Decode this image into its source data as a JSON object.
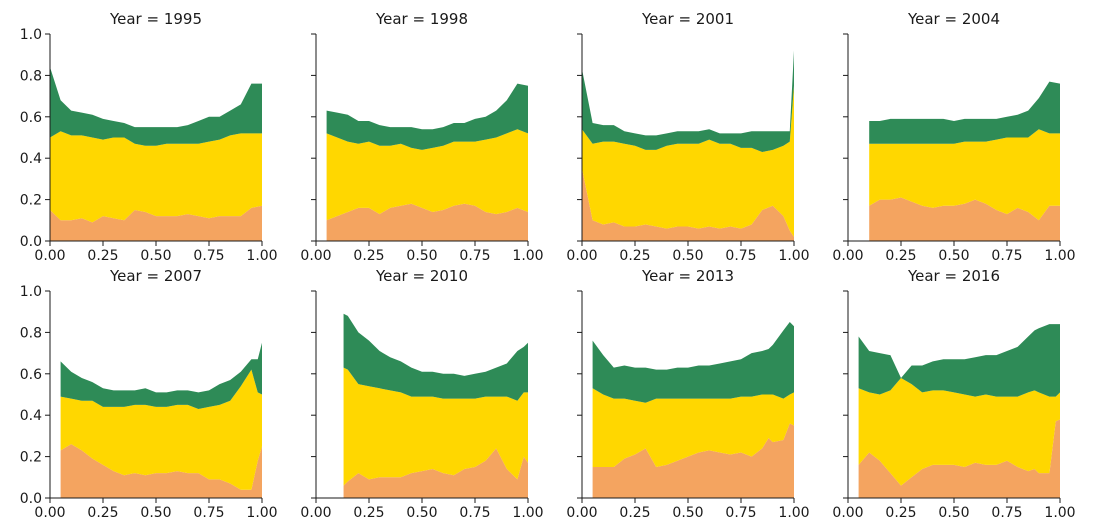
{
  "colors": {
    "orange": "#F4A460",
    "gold": "#FFD700",
    "green": "#2E8B57"
  },
  "chart_data": [
    {
      "type": "area",
      "title": "Year = 1995",
      "xlim": [
        0,
        1
      ],
      "ylim": [
        0,
        1
      ],
      "xticks": [
        "0.00",
        "0.25",
        "0.50",
        "0.75",
        "1.00"
      ],
      "yticks": [
        "0.0",
        "0.2",
        "0.4",
        "0.6",
        "0.8",
        "1.0"
      ],
      "grid": false,
      "x": [
        0.0,
        0.05,
        0.1,
        0.15,
        0.2,
        0.25,
        0.3,
        0.35,
        0.4,
        0.45,
        0.5,
        0.55,
        0.6,
        0.65,
        0.7,
        0.75,
        0.8,
        0.85,
        0.9,
        0.95,
        1.0
      ],
      "series": [
        {
          "color": "orange",
          "values": [
            0.15,
            0.1,
            0.1,
            0.11,
            0.09,
            0.12,
            0.11,
            0.1,
            0.15,
            0.14,
            0.12,
            0.12,
            0.12,
            0.13,
            0.12,
            0.11,
            0.12,
            0.12,
            0.12,
            0.16,
            0.17
          ]
        },
        {
          "color": "gold",
          "values": [
            0.35,
            0.43,
            0.41,
            0.4,
            0.41,
            0.37,
            0.39,
            0.4,
            0.32,
            0.32,
            0.34,
            0.35,
            0.35,
            0.34,
            0.35,
            0.37,
            0.37,
            0.39,
            0.4,
            0.36,
            0.35
          ]
        },
        {
          "color": "green",
          "values": [
            0.34,
            0.15,
            0.12,
            0.11,
            0.11,
            0.1,
            0.08,
            0.07,
            0.08,
            0.09,
            0.09,
            0.08,
            0.08,
            0.09,
            0.11,
            0.12,
            0.11,
            0.12,
            0.14,
            0.24,
            0.24
          ]
        }
      ]
    },
    {
      "type": "area",
      "title": "Year = 1998",
      "xlim": [
        0,
        1
      ],
      "ylim": [
        0,
        1
      ],
      "xticks": [
        "0.00",
        "0.25",
        "0.50",
        "0.75",
        "1.00"
      ],
      "yticks": [],
      "grid": false,
      "x": [
        0.05,
        0.1,
        0.15,
        0.2,
        0.25,
        0.3,
        0.35,
        0.4,
        0.45,
        0.5,
        0.55,
        0.6,
        0.65,
        0.7,
        0.75,
        0.8,
        0.85,
        0.9,
        0.95,
        1.0
      ],
      "series": [
        {
          "color": "orange",
          "values": [
            0.1,
            0.12,
            0.14,
            0.16,
            0.16,
            0.13,
            0.16,
            0.17,
            0.18,
            0.16,
            0.14,
            0.15,
            0.17,
            0.18,
            0.17,
            0.14,
            0.13,
            0.14,
            0.16,
            0.14
          ]
        },
        {
          "color": "gold",
          "values": [
            0.42,
            0.38,
            0.34,
            0.31,
            0.32,
            0.33,
            0.3,
            0.3,
            0.27,
            0.28,
            0.31,
            0.31,
            0.31,
            0.3,
            0.31,
            0.35,
            0.37,
            0.38,
            0.38,
            0.38
          ]
        },
        {
          "color": "green",
          "values": [
            0.11,
            0.12,
            0.13,
            0.11,
            0.1,
            0.1,
            0.09,
            0.08,
            0.1,
            0.1,
            0.09,
            0.09,
            0.09,
            0.09,
            0.11,
            0.11,
            0.13,
            0.16,
            0.22,
            0.23
          ]
        }
      ]
    },
    {
      "type": "area",
      "title": "Year = 2001",
      "xlim": [
        0,
        1
      ],
      "ylim": [
        0,
        1
      ],
      "xticks": [
        "0.00",
        "0.25",
        "0.50",
        "0.75",
        "1.00"
      ],
      "yticks": [],
      "grid": false,
      "x": [
        0.0,
        0.05,
        0.1,
        0.15,
        0.2,
        0.25,
        0.3,
        0.35,
        0.4,
        0.45,
        0.5,
        0.55,
        0.6,
        0.65,
        0.7,
        0.75,
        0.8,
        0.85,
        0.9,
        0.95,
        0.98,
        1.0
      ],
      "series": [
        {
          "color": "orange",
          "values": [
            0.35,
            0.1,
            0.08,
            0.09,
            0.07,
            0.07,
            0.08,
            0.07,
            0.06,
            0.07,
            0.07,
            0.06,
            0.07,
            0.06,
            0.07,
            0.06,
            0.08,
            0.15,
            0.17,
            0.12,
            0.05,
            0.02
          ]
        },
        {
          "color": "gold",
          "values": [
            0.19,
            0.37,
            0.4,
            0.39,
            0.4,
            0.39,
            0.36,
            0.37,
            0.4,
            0.4,
            0.4,
            0.41,
            0.42,
            0.41,
            0.4,
            0.39,
            0.37,
            0.28,
            0.27,
            0.34,
            0.43,
            0.73
          ]
        },
        {
          "color": "green",
          "values": [
            0.29,
            0.1,
            0.08,
            0.08,
            0.06,
            0.06,
            0.07,
            0.07,
            0.06,
            0.06,
            0.06,
            0.06,
            0.05,
            0.05,
            0.05,
            0.07,
            0.08,
            0.1,
            0.09,
            0.07,
            0.05,
            0.17
          ]
        }
      ]
    },
    {
      "type": "area",
      "title": "Year = 2004",
      "xlim": [
        0,
        1
      ],
      "ylim": [
        0,
        1
      ],
      "xticks": [
        "0.00",
        "0.25",
        "0.50",
        "0.75",
        "1.00"
      ],
      "yticks": [],
      "grid": false,
      "x": [
        0.1,
        0.15,
        0.2,
        0.25,
        0.3,
        0.35,
        0.4,
        0.45,
        0.5,
        0.55,
        0.6,
        0.65,
        0.7,
        0.75,
        0.8,
        0.85,
        0.9,
        0.95,
        1.0
      ],
      "series": [
        {
          "color": "orange",
          "values": [
            0.17,
            0.2,
            0.2,
            0.21,
            0.19,
            0.17,
            0.16,
            0.17,
            0.17,
            0.18,
            0.2,
            0.18,
            0.15,
            0.13,
            0.16,
            0.14,
            0.1,
            0.17,
            0.17
          ]
        },
        {
          "color": "gold",
          "values": [
            0.3,
            0.27,
            0.27,
            0.26,
            0.28,
            0.3,
            0.31,
            0.3,
            0.3,
            0.3,
            0.28,
            0.3,
            0.34,
            0.37,
            0.34,
            0.36,
            0.44,
            0.35,
            0.35
          ]
        },
        {
          "color": "green",
          "values": [
            0.11,
            0.11,
            0.12,
            0.12,
            0.12,
            0.12,
            0.12,
            0.12,
            0.11,
            0.11,
            0.11,
            0.11,
            0.1,
            0.1,
            0.11,
            0.13,
            0.15,
            0.25,
            0.24
          ]
        }
      ]
    },
    {
      "type": "area",
      "title": "Year = 2007",
      "xlim": [
        0,
        1
      ],
      "ylim": [
        0,
        1
      ],
      "xticks": [
        "0.00",
        "0.25",
        "0.50",
        "0.75",
        "1.00"
      ],
      "yticks": [
        "0.0",
        "0.2",
        "0.4",
        "0.6",
        "0.8",
        "1.0"
      ],
      "grid": false,
      "x": [
        0.05,
        0.1,
        0.15,
        0.2,
        0.25,
        0.3,
        0.35,
        0.4,
        0.45,
        0.5,
        0.55,
        0.6,
        0.65,
        0.7,
        0.75,
        0.8,
        0.85,
        0.9,
        0.95,
        0.98,
        1.0
      ],
      "series": [
        {
          "color": "orange",
          "values": [
            0.23,
            0.26,
            0.23,
            0.19,
            0.16,
            0.13,
            0.11,
            0.12,
            0.11,
            0.12,
            0.12,
            0.13,
            0.12,
            0.12,
            0.09,
            0.09,
            0.07,
            0.04,
            0.04,
            0.18,
            0.25
          ]
        },
        {
          "color": "gold",
          "values": [
            0.26,
            0.22,
            0.24,
            0.28,
            0.28,
            0.31,
            0.33,
            0.33,
            0.34,
            0.32,
            0.32,
            0.32,
            0.33,
            0.31,
            0.35,
            0.36,
            0.4,
            0.5,
            0.58,
            0.33,
            0.25
          ]
        },
        {
          "color": "green",
          "values": [
            0.17,
            0.13,
            0.11,
            0.09,
            0.09,
            0.08,
            0.08,
            0.07,
            0.08,
            0.07,
            0.07,
            0.07,
            0.07,
            0.08,
            0.08,
            0.1,
            0.1,
            0.07,
            0.05,
            0.16,
            0.25
          ]
        }
      ]
    },
    {
      "type": "area",
      "title": "Year = 2010",
      "xlim": [
        0,
        1
      ],
      "ylim": [
        0,
        1
      ],
      "xticks": [
        "0.00",
        "0.25",
        "0.50",
        "0.75",
        "1.00"
      ],
      "yticks": [],
      "grid": false,
      "x": [
        0.13,
        0.15,
        0.2,
        0.25,
        0.3,
        0.35,
        0.4,
        0.45,
        0.5,
        0.55,
        0.6,
        0.65,
        0.7,
        0.75,
        0.8,
        0.85,
        0.9,
        0.95,
        0.98,
        1.0
      ],
      "series": [
        {
          "color": "orange",
          "values": [
            0.06,
            0.08,
            0.12,
            0.09,
            0.1,
            0.1,
            0.1,
            0.12,
            0.13,
            0.14,
            0.12,
            0.11,
            0.14,
            0.15,
            0.18,
            0.24,
            0.14,
            0.09,
            0.2,
            0.17
          ]
        },
        {
          "color": "gold",
          "values": [
            0.57,
            0.54,
            0.43,
            0.45,
            0.43,
            0.42,
            0.41,
            0.37,
            0.36,
            0.35,
            0.36,
            0.37,
            0.34,
            0.33,
            0.31,
            0.25,
            0.35,
            0.38,
            0.31,
            0.34
          ]
        },
        {
          "color": "green",
          "values": [
            0.26,
            0.26,
            0.25,
            0.22,
            0.18,
            0.16,
            0.15,
            0.14,
            0.12,
            0.12,
            0.12,
            0.12,
            0.11,
            0.12,
            0.12,
            0.14,
            0.16,
            0.24,
            0.22,
            0.24
          ]
        }
      ]
    },
    {
      "type": "area",
      "title": "Year = 2013",
      "xlim": [
        0,
        1
      ],
      "ylim": [
        0,
        1
      ],
      "xticks": [
        "0.00",
        "0.25",
        "0.50",
        "0.75",
        "1.00"
      ],
      "yticks": [],
      "grid": false,
      "x": [
        0.05,
        0.1,
        0.15,
        0.2,
        0.25,
        0.3,
        0.35,
        0.4,
        0.45,
        0.5,
        0.55,
        0.6,
        0.65,
        0.7,
        0.75,
        0.8,
        0.85,
        0.88,
        0.9,
        0.95,
        0.98,
        1.0
      ],
      "series": [
        {
          "color": "orange",
          "values": [
            0.15,
            0.15,
            0.15,
            0.19,
            0.21,
            0.24,
            0.15,
            0.16,
            0.18,
            0.2,
            0.22,
            0.23,
            0.22,
            0.21,
            0.22,
            0.2,
            0.24,
            0.29,
            0.27,
            0.28,
            0.36,
            0.35
          ]
        },
        {
          "color": "gold",
          "values": [
            0.38,
            0.35,
            0.33,
            0.29,
            0.26,
            0.22,
            0.33,
            0.32,
            0.3,
            0.28,
            0.26,
            0.25,
            0.26,
            0.27,
            0.27,
            0.29,
            0.26,
            0.21,
            0.23,
            0.2,
            0.14,
            0.16
          ]
        },
        {
          "color": "green",
          "values": [
            0.23,
            0.19,
            0.15,
            0.16,
            0.16,
            0.17,
            0.14,
            0.14,
            0.15,
            0.15,
            0.16,
            0.16,
            0.17,
            0.18,
            0.18,
            0.21,
            0.21,
            0.22,
            0.24,
            0.33,
            0.35,
            0.32
          ]
        }
      ]
    },
    {
      "type": "area",
      "title": "Year = 2016",
      "xlim": [
        0,
        1
      ],
      "ylim": [
        0,
        1
      ],
      "xticks": [
        "0.00",
        "0.25",
        "0.50",
        "0.75",
        "1.00"
      ],
      "yticks": [],
      "grid": false,
      "x": [
        0.05,
        0.1,
        0.15,
        0.2,
        0.25,
        0.3,
        0.35,
        0.4,
        0.45,
        0.5,
        0.55,
        0.6,
        0.65,
        0.7,
        0.75,
        0.8,
        0.85,
        0.88,
        0.9,
        0.95,
        0.98,
        1.0
      ],
      "series": [
        {
          "color": "orange",
          "values": [
            0.16,
            0.22,
            0.18,
            0.12,
            0.06,
            0.1,
            0.14,
            0.16,
            0.16,
            0.16,
            0.15,
            0.17,
            0.16,
            0.16,
            0.18,
            0.15,
            0.13,
            0.14,
            0.12,
            0.12,
            0.37,
            0.38
          ]
        },
        {
          "color": "gold",
          "values": [
            0.37,
            0.29,
            0.32,
            0.4,
            0.52,
            0.45,
            0.37,
            0.36,
            0.36,
            0.35,
            0.35,
            0.32,
            0.34,
            0.33,
            0.31,
            0.34,
            0.38,
            0.38,
            0.39,
            0.37,
            0.12,
            0.13
          ]
        },
        {
          "color": "green",
          "values": [
            0.25,
            0.2,
            0.2,
            0.17,
            0.0,
            0.09,
            0.13,
            0.14,
            0.15,
            0.16,
            0.17,
            0.19,
            0.19,
            0.2,
            0.22,
            0.24,
            0.27,
            0.29,
            0.31,
            0.35,
            0.35,
            0.33
          ]
        }
      ]
    }
  ]
}
